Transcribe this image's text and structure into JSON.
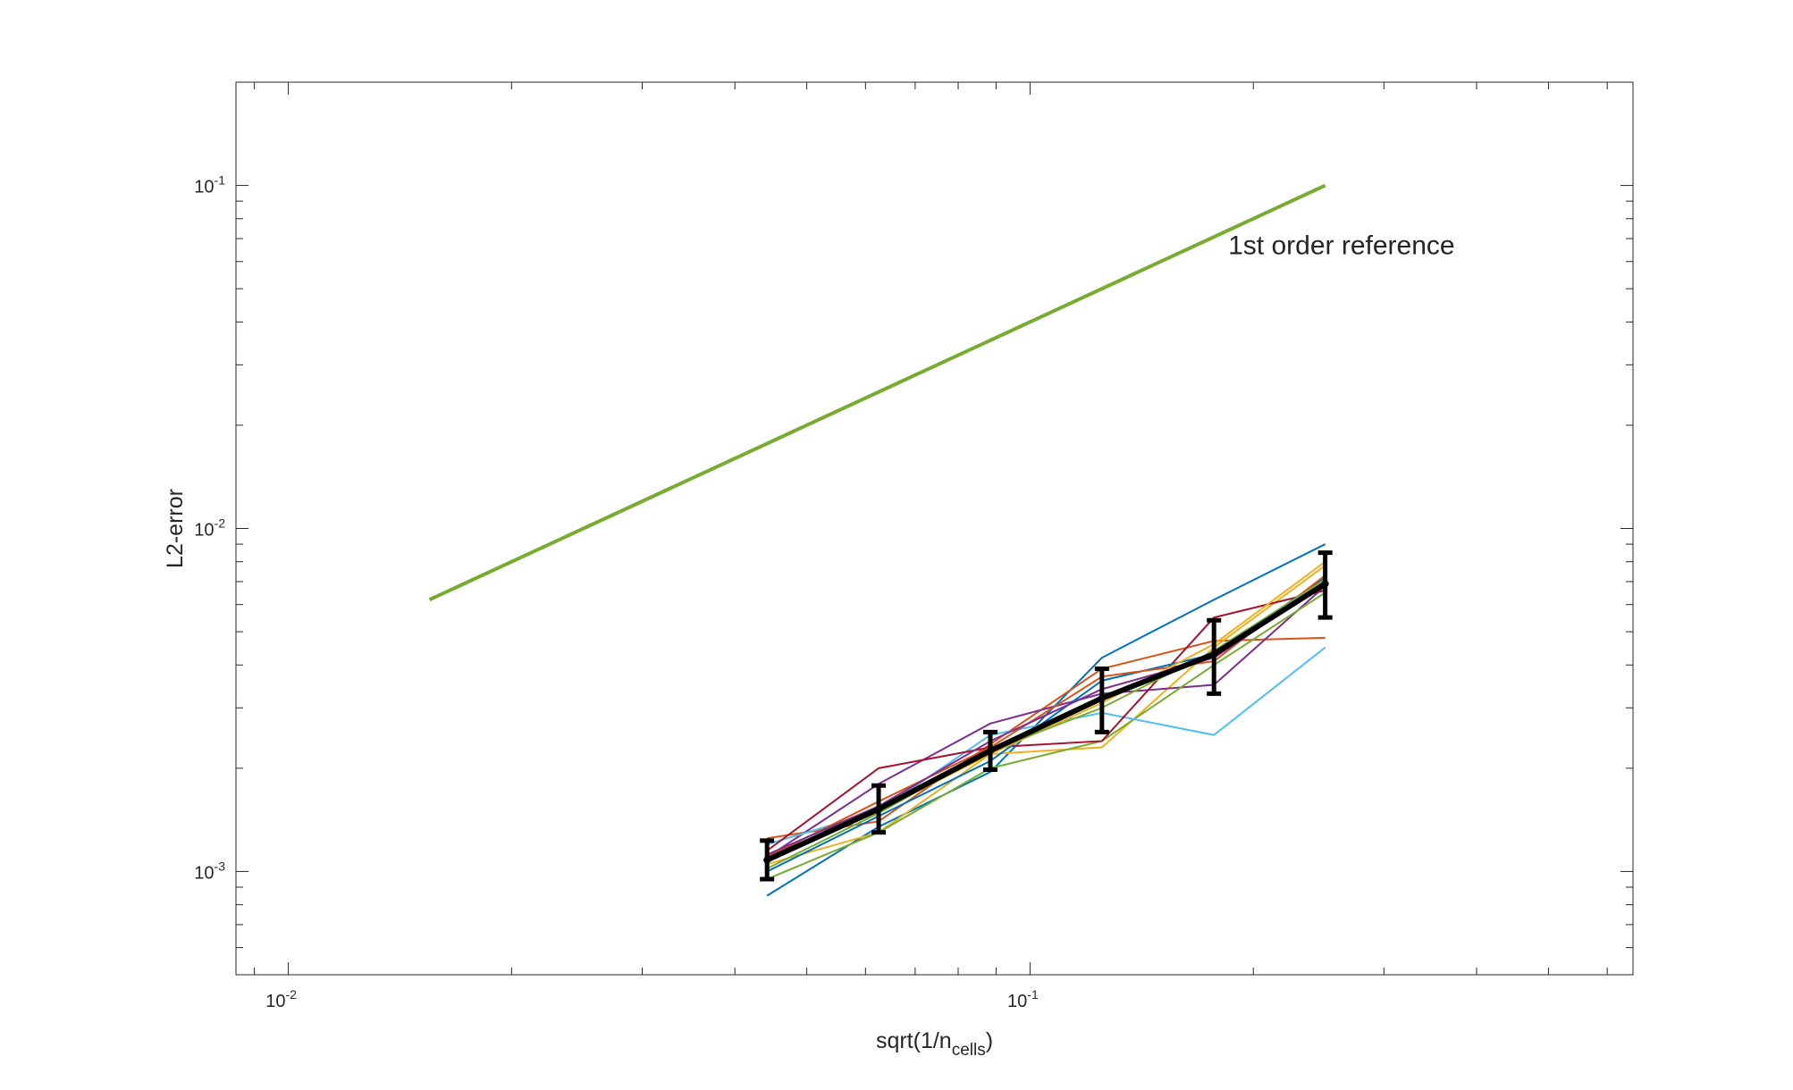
{
  "chart_data": {
    "type": "line",
    "xscale": "log",
    "yscale": "log",
    "xlim": [
      0.0085,
      0.65
    ],
    "ylim": [
      0.0005,
      0.2
    ],
    "xlabel": {
      "text": "sqrt(1/n",
      "subscript": "cells",
      "suffix": ")"
    },
    "ylabel": "L2-error",
    "x_ticks": [
      {
        "value": 0.01,
        "base": "10",
        "exponent": "-2"
      },
      {
        "value": 0.1,
        "base": "10",
        "exponent": "-1"
      }
    ],
    "y_ticks": [
      {
        "value": 0.001,
        "base": "10",
        "exponent": "-3"
      },
      {
        "value": 0.01,
        "base": "10",
        "exponent": "-2"
      },
      {
        "value": 0.1,
        "base": "10",
        "exponent": "-1"
      }
    ],
    "grid": false,
    "box": true,
    "annotation": {
      "text": "1st order reference",
      "x": 0.185,
      "y": 0.063
    },
    "reference_line": {
      "x": [
        0.0155,
        0.25
      ],
      "y": [
        0.0062,
        0.1
      ],
      "color": "#77ac30"
    },
    "x": [
      0.0442,
      0.0625,
      0.0884,
      0.125,
      0.177,
      0.25
    ],
    "series": [
      {
        "values": [
          0.00085,
          0.00135,
          0.00195,
          0.0042,
          0.0062,
          0.009
        ],
        "color": "#0072bd"
      },
      {
        "values": [
          0.00125,
          0.0014,
          0.00235,
          0.0039,
          0.0047,
          0.0048
        ],
        "color": "#d95319"
      },
      {
        "values": [
          0.00105,
          0.0013,
          0.0022,
          0.0023,
          0.0045,
          0.0078
        ],
        "color": "#edb120"
      },
      {
        "values": [
          0.0011,
          0.0018,
          0.0027,
          0.0033,
          0.0035,
          0.0068
        ],
        "color": "#7e2f8e"
      },
      {
        "values": [
          0.00095,
          0.0013,
          0.002,
          0.0024,
          0.004,
          0.0065
        ],
        "color": "#77ac30"
      },
      {
        "values": [
          0.0012,
          0.0015,
          0.0025,
          0.0029,
          0.0025,
          0.0045
        ],
        "color": "#4dbeee"
      },
      {
        "values": [
          0.00115,
          0.002,
          0.0023,
          0.0024,
          0.0055,
          0.0066
        ],
        "color": "#a2142f"
      },
      {
        "values": [
          0.001,
          0.00145,
          0.0021,
          0.0036,
          0.0043,
          0.0072
        ],
        "color": "#0072bd"
      },
      {
        "values": [
          0.0011,
          0.0016,
          0.0023,
          0.0037,
          0.0041,
          0.0073
        ],
        "color": "#d95319"
      },
      {
        "values": [
          0.00108,
          0.0015,
          0.0022,
          0.0031,
          0.0046,
          0.008
        ],
        "color": "#edb120"
      },
      {
        "values": [
          0.00112,
          0.00155,
          0.0024,
          0.0034,
          0.0042,
          0.0069
        ],
        "color": "#7e2f8e"
      },
      {
        "values": [
          0.00102,
          0.00148,
          0.00225,
          0.003,
          0.0044,
          0.0071
        ],
        "color": "#77ac30"
      }
    ],
    "mean": {
      "values": [
        0.00108,
        0.00152,
        0.00225,
        0.0032,
        0.0043,
        0.0069
      ],
      "err_low": [
        0.00095,
        0.0013,
        0.00198,
        0.00255,
        0.0033,
        0.0055
      ],
      "err_high": [
        0.00123,
        0.00178,
        0.00255,
        0.0039,
        0.0054,
        0.0085
      ],
      "color": "#000000"
    }
  }
}
